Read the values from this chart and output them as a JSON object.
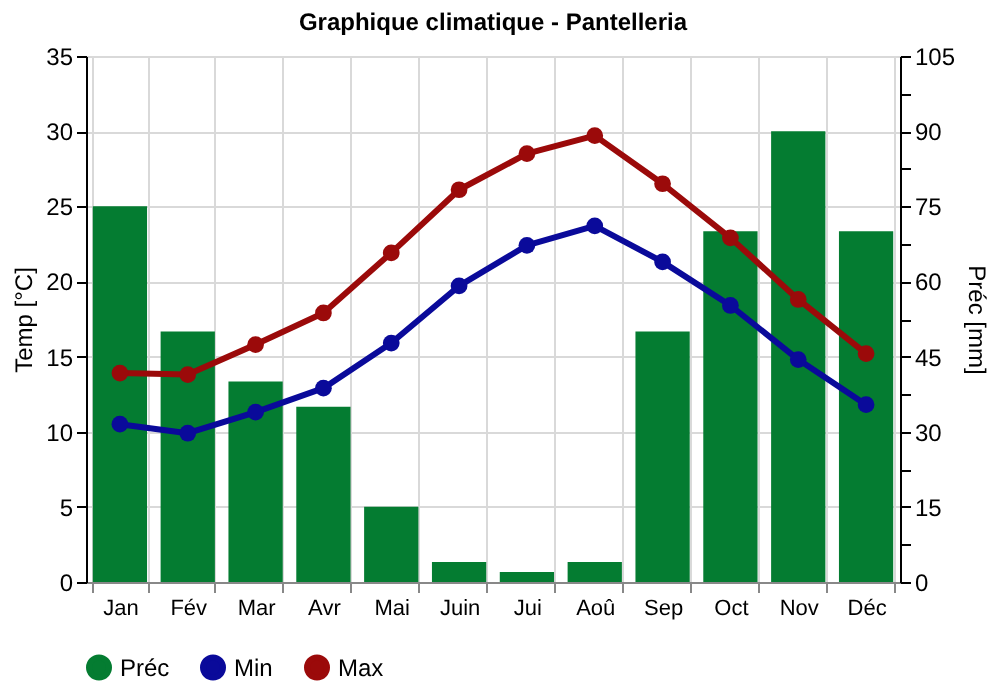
{
  "chart_data": {
    "type": "bar",
    "title": "Graphique climatique - Pantelleria",
    "ylabel": "Temp [°C]",
    "y2label": "Préc [mm]",
    "categories": [
      "Jan",
      "Fév",
      "Mar",
      "Avr",
      "Mai",
      "Juin",
      "Jui",
      "Aoû",
      "Sep",
      "Oct",
      "Nov",
      "Déc"
    ],
    "series": [
      {
        "name": "Préc",
        "axis": "y2",
        "color": "#047c31",
        "values": [
          75,
          50,
          40,
          35,
          15,
          4,
          2,
          4,
          50,
          70,
          90,
          70
        ]
      },
      {
        "name": "Min",
        "type": "line",
        "color": "#0a0a9a",
        "marker": "circle",
        "values": [
          10.5,
          9.9,
          11.3,
          12.9,
          15.9,
          19.7,
          22.4,
          23.7,
          21.3,
          18.4,
          14.8,
          11.8
        ]
      },
      {
        "name": "Max",
        "type": "line",
        "color": "#9b0a0a",
        "marker": "circle",
        "values": [
          13.9,
          13.8,
          15.8,
          17.9,
          21.9,
          26.1,
          28.5,
          29.7,
          26.5,
          22.9,
          18.8,
          15.2
        ]
      }
    ],
    "ylim": [
      0,
      35
    ],
    "yticks": [
      0,
      5,
      10,
      15,
      20,
      25,
      30,
      35
    ],
    "y2lim": [
      0,
      105
    ],
    "y2ticks": [
      0,
      {
        "value": 7.5,
        "label": null
      },
      15,
      {
        "value": 22.5,
        "label": null
      },
      30,
      {
        "value": 37.5,
        "label": null
      },
      45,
      {
        "value": 52.5,
        "label": null
      },
      60,
      {
        "value": 67.5,
        "label": null
      },
      75,
      {
        "value": 82.5,
        "label": null
      },
      90,
      {
        "value": 97.5,
        "label": null
      },
      105
    ],
    "grid": true,
    "legend": "bottom"
  }
}
